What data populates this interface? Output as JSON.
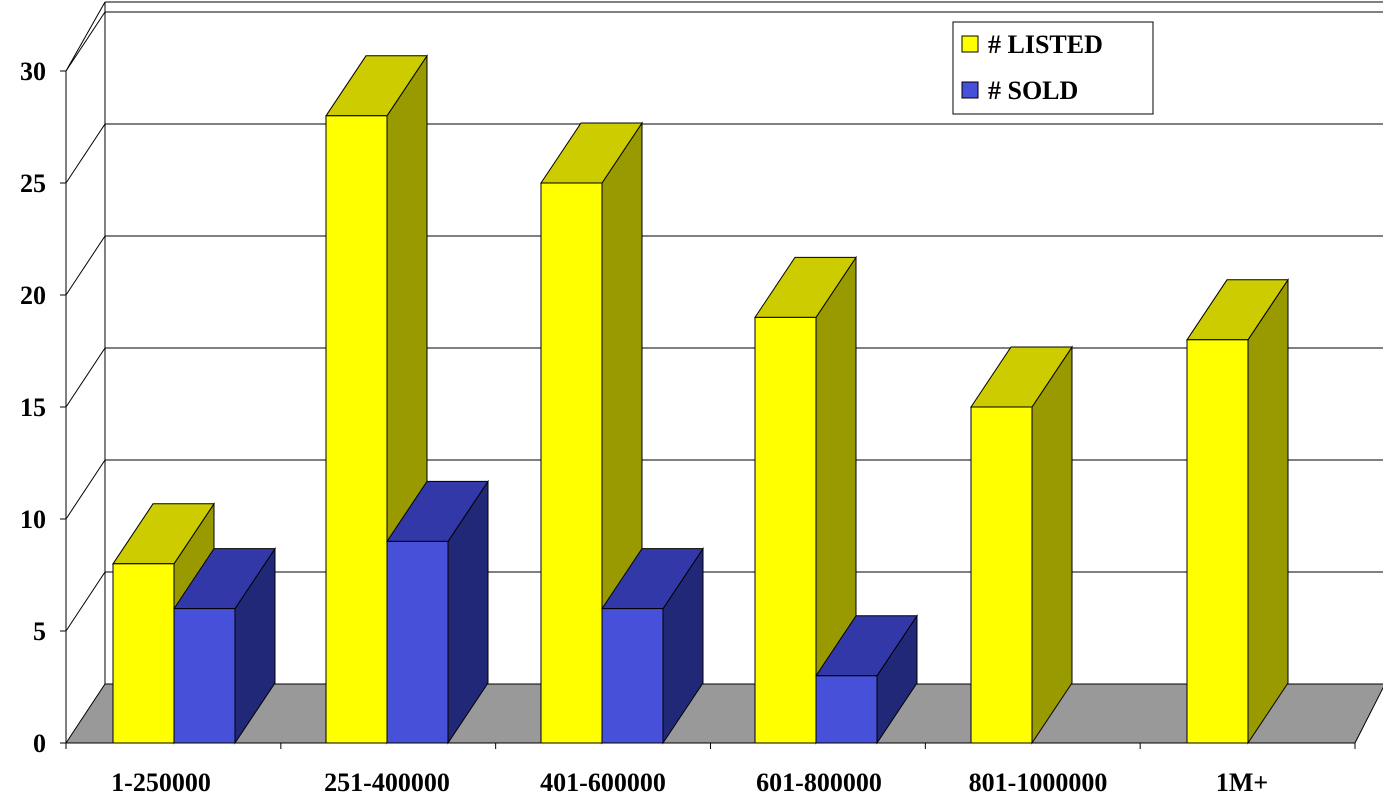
{
  "chart_data": {
    "type": "bar",
    "categories": [
      "1-250000",
      "251-400000",
      "401-600000",
      "601-800000",
      "801-1000000",
      "1M+"
    ],
    "series": [
      {
        "name": "# LISTED",
        "values": [
          8,
          28,
          25,
          19,
          15,
          18
        ]
      },
      {
        "name": "# SOLD",
        "values": [
          6,
          9,
          6,
          3,
          0,
          0
        ]
      }
    ],
    "ylim": [
      0,
      30
    ],
    "yticks": [
      "0",
      "5",
      "10",
      "15",
      "20",
      "25",
      "30"
    ],
    "grid": true,
    "legend_position": "top-right",
    "colors": {
      "listed_front": "#ffff00",
      "listed_top": "#cccc00",
      "listed_side": "#999900",
      "sold_front": "#4650d8",
      "sold_top": "#3338a8",
      "sold_side": "#222878",
      "floor": "#999999"
    }
  }
}
